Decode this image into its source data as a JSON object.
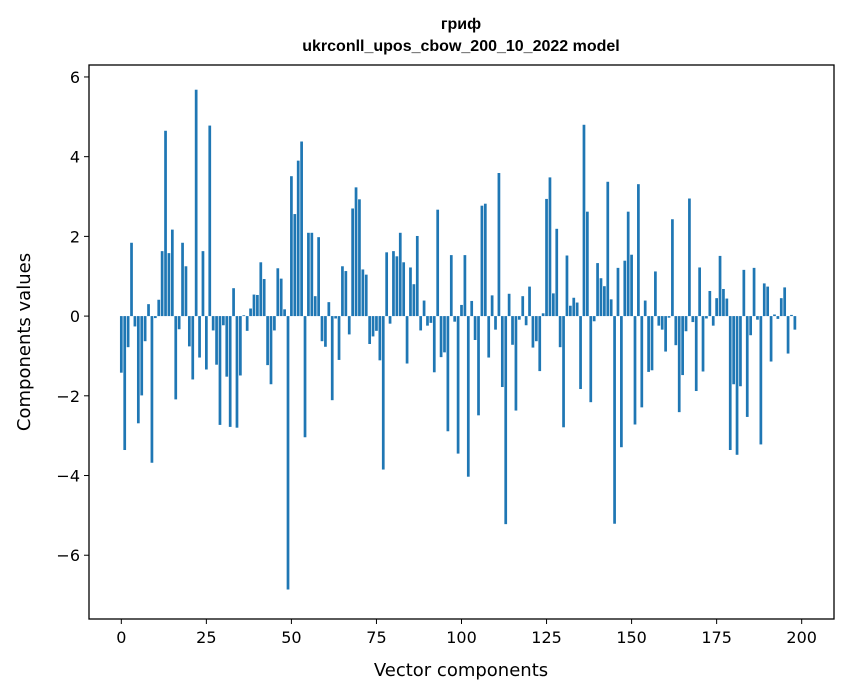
{
  "chart_data": {
    "type": "bar",
    "title": "гриф",
    "subtitle": "ukrconll_upos_cbow_200_10_2022 model",
    "xlabel": "Vector components",
    "ylabel": "Components values",
    "xlim": [
      -9.5,
      209.5
    ],
    "ylim": [
      -7.6,
      6.3
    ],
    "xticks": [
      0,
      25,
      50,
      75,
      100,
      125,
      150,
      175,
      200
    ],
    "yticks": [
      -6,
      -4,
      -2,
      0,
      2,
      4,
      6
    ],
    "grid": false,
    "color": "#1f77b4",
    "x_start": 0,
    "values": [
      -1.42,
      -3.36,
      -0.78,
      1.84,
      -0.26,
      -2.69,
      -1.99,
      -0.63,
      0.3,
      -3.68,
      -0.05,
      0.41,
      1.63,
      4.65,
      1.58,
      2.17,
      -2.09,
      -0.33,
      1.84,
      1.25,
      -0.76,
      -1.59,
      5.68,
      -1.04,
      1.63,
      -1.34,
      4.78,
      -0.36,
      -1.22,
      -2.73,
      -0.23,
      -1.52,
      -2.78,
      0.7,
      -2.8,
      -1.49,
      0.02,
      -0.37,
      0.19,
      0.54,
      0.53,
      1.35,
      0.93,
      -1.23,
      -1.71,
      -0.36,
      1.2,
      0.94,
      0.17,
      -6.86,
      3.51,
      2.56,
      3.9,
      4.38,
      -3.04,
      2.09,
      2.09,
      0.5,
      1.98,
      -0.63,
      -0.77,
      0.35,
      -2.11,
      -0.06,
      -1.1,
      1.25,
      1.13,
      -0.46,
      2.7,
      3.23,
      2.93,
      1.17,
      1.04,
      -0.7,
      -0.51,
      -0.37,
      -1.11,
      -3.85,
      1.6,
      -0.19,
      1.63,
      1.5,
      2.09,
      1.35,
      -1.19,
      1.22,
      0.8,
      2.01,
      -0.36,
      0.39,
      -0.24,
      -0.17,
      -1.41,
      2.67,
      -1.03,
      -0.91,
      -2.89,
      1.53,
      -0.14,
      -3.45,
      0.28,
      1.53,
      -4.03,
      0.38,
      -0.6,
      -2.49,
      2.77,
      2.82,
      -1.04,
      0.52,
      -0.34,
      3.59,
      -1.78,
      -5.22,
      0.56,
      -0.72,
      -2.37,
      -0.09,
      0.5,
      -0.23,
      0.74,
      -0.79,
      -0.63,
      -1.38,
      0.07,
      2.94,
      3.48,
      0.57,
      2.19,
      -0.78,
      -2.79,
      1.52,
      0.26,
      0.46,
      0.34,
      -1.83,
      4.8,
      2.62,
      -2.16,
      -0.13,
      1.33,
      0.95,
      0.75,
      3.37,
      0.42,
      -5.21,
      1.21,
      -3.29,
      1.39,
      2.62,
      1.54,
      -2.72,
      3.31,
      -2.29,
      0.39,
      -1.4,
      -1.36,
      1.12,
      -0.24,
      -0.34,
      -0.89,
      -0.04,
      2.43,
      -0.73,
      -2.41,
      -1.48,
      -0.38,
      2.95,
      -0.15,
      -1.88,
      1.22,
      -1.39,
      -0.06,
      0.63,
      -0.24,
      0.45,
      1.51,
      0.68,
      0.44,
      -3.36,
      -1.71,
      -3.48,
      -1.76,
      1.16,
      -2.53,
      -0.48,
      1.21,
      -0.09,
      -3.22,
      0.82,
      0.74,
      -1.14,
      0.04,
      -0.07,
      0.45,
      0.72,
      -0.94,
      0.03,
      -0.34
    ]
  }
}
